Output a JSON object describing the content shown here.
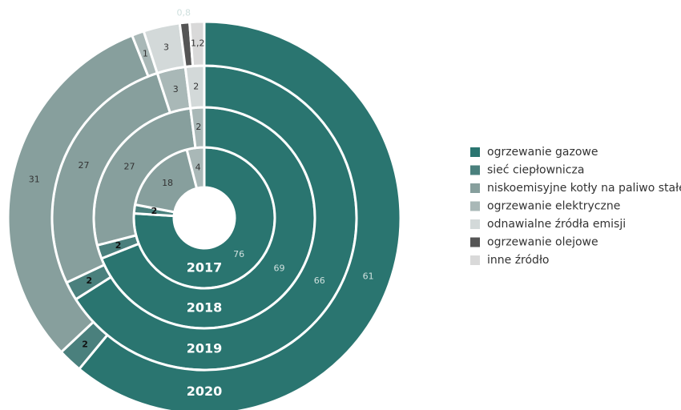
{
  "chart_data": {
    "type": "multi-ring-donut",
    "categories": [
      "ogrzewanie gazowe",
      "sieć ciepłownicza",
      "niskoemisyjne kotły na paliwo stałe",
      "ogrzewanie elektryczne",
      "odnawialne źródła emisji",
      "ogrzewanie olejowe",
      "inne źródło"
    ],
    "colors": [
      "#2a7570",
      "#4a807d",
      "#879f9d",
      "#a9b8b7",
      "#d3d9d9",
      "#555555",
      "#d9d9d9"
    ],
    "series": [
      {
        "name": "2017",
        "values": [
          76,
          2,
          18,
          4,
          null,
          null,
          null
        ],
        "value_labels": [
          "76",
          "2",
          "18",
          "4",
          null,
          null,
          null
        ]
      },
      {
        "name": "2018",
        "values": [
          69,
          2,
          27,
          2,
          null,
          null,
          null
        ],
        "value_labels": [
          "69",
          "2",
          "27",
          "2",
          null,
          null,
          null
        ]
      },
      {
        "name": "2019",
        "values": [
          66,
          2,
          27,
          3,
          2,
          null,
          null
        ],
        "value_labels": [
          "66",
          "2",
          "27",
          "3",
          "2",
          null,
          null
        ]
      },
      {
        "name": "2020",
        "values": [
          61,
          2,
          31,
          1,
          3,
          0.8,
          1.2
        ],
        "value_labels": [
          "61",
          "2",
          "31",
          "1",
          "3",
          "0,8",
          "1,2"
        ]
      }
    ]
  }
}
